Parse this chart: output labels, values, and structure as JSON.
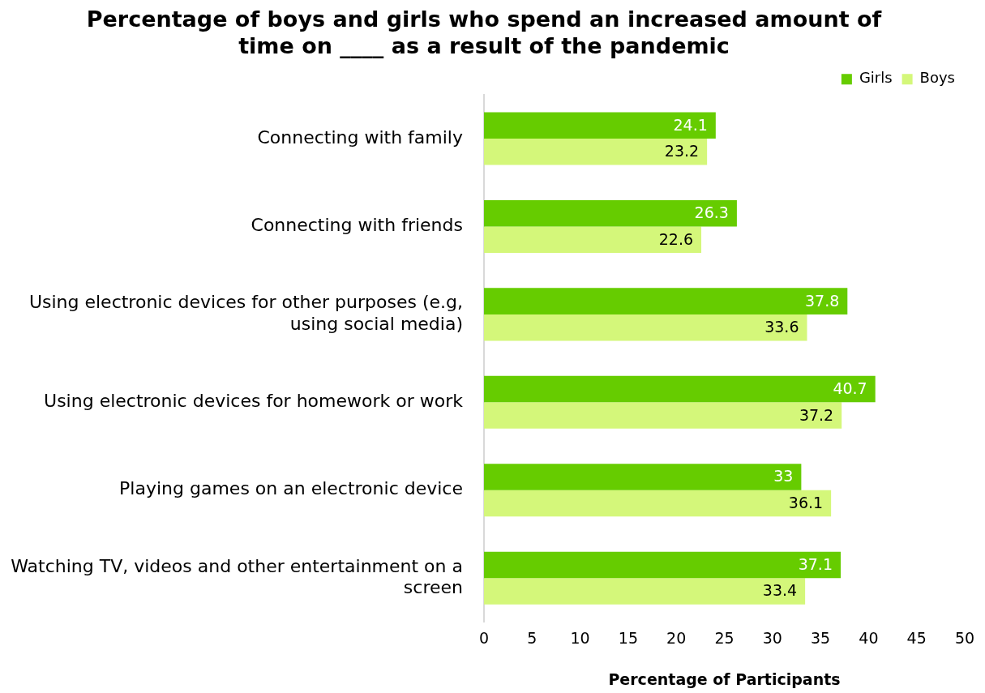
{
  "chart_data": {
    "type": "bar",
    "orientation": "horizontal",
    "title": "Percentage of boys and girls who spend an increased amount of time on ____ as a result of the pandemic",
    "xlabel": "Percentage of Participants",
    "categories": [
      "Connecting with family",
      "Connecting with friends",
      "Using electronic devices for other purposes (e.g, using social media)",
      "Using electronic devices for homework or work",
      "Playing games on an electronic device",
      "Watching TV, videos and other entertainment on a screen"
    ],
    "series": [
      {
        "name": "Girls",
        "color": "#66cc00",
        "values": [
          24.1,
          26.3,
          37.8,
          40.7,
          33,
          37.1
        ]
      },
      {
        "name": "Boys",
        "color": "#d4f77a",
        "values": [
          23.2,
          22.6,
          33.6,
          37.2,
          36.1,
          33.4
        ]
      }
    ],
    "xlim": [
      0,
      50
    ],
    "xticks": [
      0,
      5,
      10,
      15,
      20,
      25,
      30,
      35,
      40,
      45,
      50
    ],
    "grid": false,
    "legend": "top right",
    "data_labels": true
  }
}
